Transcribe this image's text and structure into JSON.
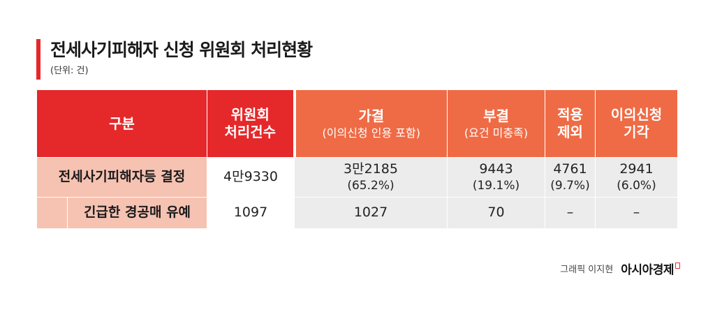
{
  "header": {
    "title": "전세사기피해자 신청 위원회 처리현황",
    "unit": "(단위: 건)"
  },
  "table": {
    "col_label": "구분",
    "col_total_line1": "위원회",
    "col_total_line2": "처리건수",
    "col_approved": "가결",
    "col_approved_sub": "(이의신청 인용 포함)",
    "col_rejected": "부결",
    "col_rejected_sub": "(요건 미충족)",
    "col_excluded_line1": "적용",
    "col_excluded_line2": "제외",
    "col_appeal_line1": "이의신청",
    "col_appeal_line2": "기각",
    "rows": [
      {
        "label": "전세사기피해자등 결정",
        "total": "4만9330",
        "approved": "3만2185",
        "approved_pct": "(65.2%)",
        "rejected": "9443",
        "rejected_pct": "(19.1%)",
        "excluded": "4761",
        "excluded_pct": "(9.7%)",
        "appeal": "2941",
        "appeal_pct": "(6.0%)"
      },
      {
        "label": "긴급한 경공매 유예",
        "total": "1097",
        "approved": "1027",
        "rejected": "70",
        "excluded": "–",
        "appeal": "–"
      }
    ]
  },
  "footer": {
    "credit": "그래픽 이지현",
    "brand": "아시아경제"
  },
  "colors": {
    "accent_red": "#e5282a",
    "header_orange": "#ef6b45",
    "label_pink": "#f6c2b2",
    "cell_grey": "#ececec"
  }
}
